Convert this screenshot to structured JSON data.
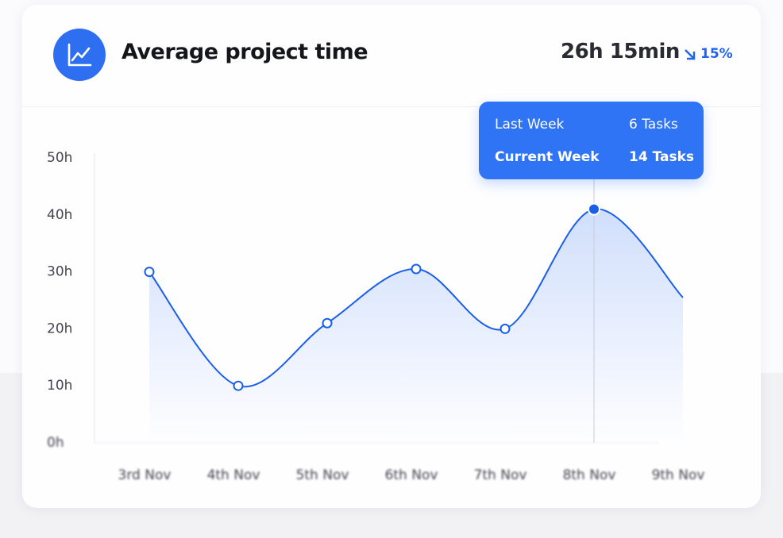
{
  "header": {
    "title": "Average project time",
    "value": "26h 15min",
    "change": "15%"
  },
  "tooltip": {
    "rows": [
      [
        "Last Week",
        "6 Tasks"
      ],
      [
        "Current Week",
        "14 Tasks"
      ]
    ]
  },
  "chart_data": {
    "type": "line",
    "categories": [
      "3rd Nov",
      "4th Nov",
      "5th Nov",
      "6th Nov",
      "7th Nov",
      "8th Nov",
      "9th Nov"
    ],
    "values": [
      30,
      10,
      21,
      30.5,
      20,
      41,
      25.5
    ],
    "color": "#1a5fe8",
    "ylim": [
      0,
      50
    ],
    "yticks": [
      {
        "value": 0,
        "label": "0h"
      },
      {
        "value": 10,
        "label": "10h"
      },
      {
        "value": 20,
        "label": "20h"
      },
      {
        "value": 30,
        "label": "30h"
      },
      {
        "value": 40,
        "label": "40h"
      },
      {
        "value": 50,
        "label": "50h"
      }
    ]
  }
}
